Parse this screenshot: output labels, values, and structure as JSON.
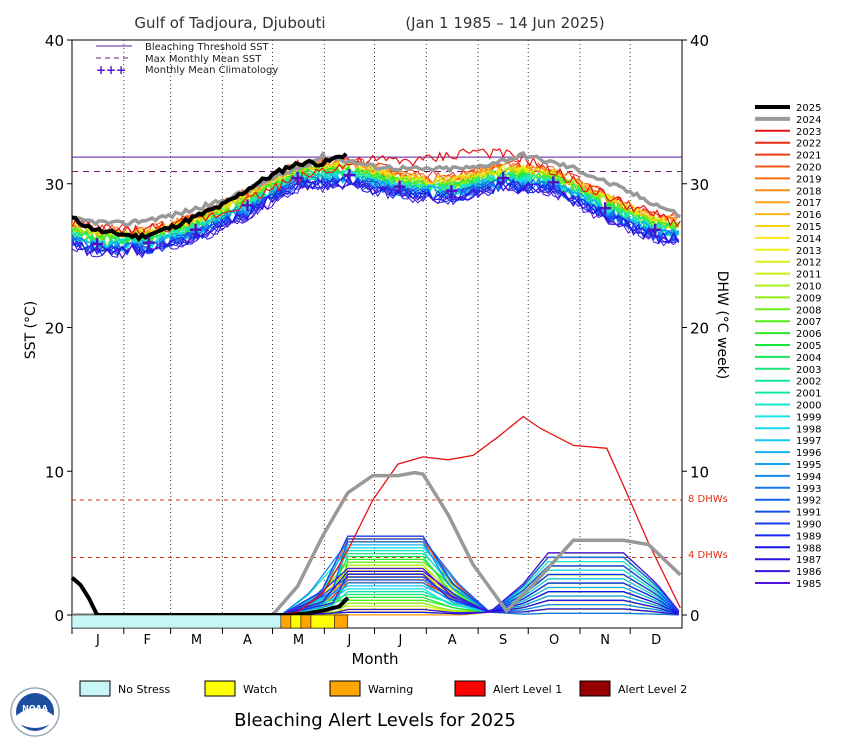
{
  "title": "Gulf of Tadjoura, Djubouti",
  "date_range": "(Jan 1 1985 – 14 Jun 2025)",
  "bottom_title": "Bleaching Alert Levels for 2025",
  "logo_text": "NOAA",
  "legend_top": [
    {
      "label": "Bleaching Threshold SST",
      "color": "#5a1aa0",
      "style": "solid"
    },
    {
      "label": "Max Monthly Mean SST",
      "color": "#7a1a6a",
      "style": "dashed"
    },
    {
      "label": "Monthly Mean Climatology",
      "color": "#5010c8",
      "style": "plus"
    }
  ],
  "dhw_ref_labels": [
    "8 DHWs",
    "4 DHWs"
  ],
  "alert_legend": [
    {
      "label": "No Stress",
      "color": "#c8f6f6"
    },
    {
      "label": "Watch",
      "color": "#ffff00"
    },
    {
      "label": "Warning",
      "color": "#ffa500"
    },
    {
      "label": "Alert Level 1",
      "color": "#ff0000"
    },
    {
      "label": "Alert Level 2",
      "color": "#960000"
    }
  ],
  "year_legend": [
    {
      "year": "2025",
      "color": "#000000"
    },
    {
      "year": "2024",
      "color": "#999999"
    },
    {
      "year": "2023",
      "color": "#e61414"
    },
    {
      "year": "2022",
      "color": "#eb2814"
    },
    {
      "year": "2021",
      "color": "#f03c14"
    },
    {
      "year": "2020",
      "color": "#f55a14"
    },
    {
      "year": "2019",
      "color": "#fa6e14"
    },
    {
      "year": "2018",
      "color": "#fa8c14"
    },
    {
      "year": "2017",
      "color": "#faa014"
    },
    {
      "year": "2016",
      "color": "#fab414"
    },
    {
      "year": "2015",
      "color": "#fad214"
    },
    {
      "year": "2014",
      "color": "#fae614"
    },
    {
      "year": "2013",
      "color": "#f0f014"
    },
    {
      "year": "2012",
      "color": "#dcf014"
    },
    {
      "year": "2011",
      "color": "#c8f014"
    },
    {
      "year": "2010",
      "color": "#aaf014"
    },
    {
      "year": "2009",
      "color": "#8cf014"
    },
    {
      "year": "2008",
      "color": "#6ef014"
    },
    {
      "year": "2007",
      "color": "#50f014"
    },
    {
      "year": "2006",
      "color": "#32e628"
    },
    {
      "year": "2005",
      "color": "#14e63c"
    },
    {
      "year": "2004",
      "color": "#14e65a"
    },
    {
      "year": "2003",
      "color": "#14e678"
    },
    {
      "year": "2002",
      "color": "#14e696"
    },
    {
      "year": "2001",
      "color": "#14e6aa"
    },
    {
      "year": "2000",
      "color": "#14e6c8"
    },
    {
      "year": "1999",
      "color": "#14e6e6"
    },
    {
      "year": "1998",
      "color": "#14dcf0"
    },
    {
      "year": "1997",
      "color": "#14c8f0"
    },
    {
      "year": "1996",
      "color": "#14b4f0"
    },
    {
      "year": "1995",
      "color": "#14a0f0"
    },
    {
      "year": "1994",
      "color": "#148cf0"
    },
    {
      "year": "1993",
      "color": "#1478f0"
    },
    {
      "year": "1992",
      "color": "#1464f0"
    },
    {
      "year": "1991",
      "color": "#1450f0"
    },
    {
      "year": "1990",
      "color": "#143cf0"
    },
    {
      "year": "1989",
      "color": "#1428f0"
    },
    {
      "year": "1988",
      "color": "#1414e6"
    },
    {
      "year": "1987",
      "color": "#2814dc"
    },
    {
      "year": "1986",
      "color": "#3c14dc"
    },
    {
      "year": "1985",
      "color": "#5014dc"
    }
  ],
  "chart_data": {
    "type": "line",
    "title": "Gulf of Tadjoura, Djubouti",
    "xlabel": "Month",
    "ylabel": "SST (°C)",
    "y2label": "DHW (°C week)",
    "x_ticks": [
      "J",
      "F",
      "M",
      "A",
      "M",
      "J",
      "J",
      "A",
      "S",
      "O",
      "N",
      "D"
    ],
    "ylim": [
      0,
      40
    ],
    "y_ticks": [
      0,
      10,
      20,
      30,
      40
    ],
    "y2lim": [
      0,
      40
    ],
    "y2_ticks": [
      0,
      10,
      20,
      30,
      40
    ],
    "bleaching_threshold_sst": 31.85,
    "max_monthly_mean_sst": 30.85,
    "dhw_reference_lines": [
      8,
      4
    ],
    "monthly_mean_climatology": {
      "x": [
        15,
        46,
        74,
        105,
        135,
        166,
        196,
        227,
        258,
        288,
        319,
        349
      ],
      "y": [
        25.8,
        25.9,
        26.8,
        28.5,
        30.4,
        30.6,
        29.8,
        29.5,
        30.4,
        30.1,
        28.3,
        26.8
      ]
    },
    "series": [
      {
        "name": "2025",
        "sst_x": [
          0,
          10,
          20,
          30,
          40,
          50,
          60,
          70,
          80,
          90,
          100,
          110,
          120,
          130,
          140,
          150,
          160,
          165
        ],
        "sst_y": [
          27.6,
          27.0,
          26.6,
          26.5,
          26.3,
          26.6,
          27.0,
          27.5,
          28.0,
          28.5,
          29.2,
          30.0,
          30.6,
          31.2,
          31.5,
          31.4,
          31.9,
          32.1
        ],
        "dhw_x": [
          0,
          5,
          10,
          15,
          20,
          25,
          120,
          130,
          140,
          150,
          160,
          165
        ],
        "dhw_y": [
          2.6,
          2.1,
          1.2,
          0,
          0,
          0,
          0,
          0,
          0.1,
          0.3,
          0.6,
          1.2
        ]
      },
      {
        "name": "2024",
        "sst_x": [
          0,
          30,
          60,
          90,
          120,
          150,
          165,
          180,
          210,
          240,
          270,
          300,
          330,
          364
        ],
        "sst_y": [
          27.5,
          27.2,
          27.8,
          28.8,
          30.3,
          31.9,
          31.6,
          31.2,
          31.0,
          31.1,
          32.0,
          31.1,
          29.6,
          27.8
        ],
        "dhw_x": [
          0,
          60,
          120,
          135,
          150,
          165,
          180,
          195,
          205,
          210,
          225,
          240,
          260,
          275,
          300,
          330,
          345,
          364
        ],
        "dhw_y": [
          0,
          0,
          0,
          2.0,
          5.5,
          8.5,
          9.7,
          9.7,
          9.9,
          9.8,
          7.0,
          3.5,
          0.3,
          2.0,
          5.2,
          5.2,
          4.9,
          2.8
        ]
      },
      {
        "name": "2023",
        "sst_x": [
          0,
          30,
          60,
          90,
          120,
          150,
          180,
          210,
          240,
          270,
          300,
          330,
          364
        ],
        "sst_y": [
          27.3,
          26.7,
          27.0,
          28.0,
          29.7,
          31.0,
          31.6,
          31.6,
          32.3,
          31.8,
          30.2,
          28.6,
          27.2
        ],
        "dhw_x": [
          0,
          120,
          135,
          150,
          165,
          180,
          195,
          210,
          225,
          240,
          255,
          270,
          280,
          300,
          320,
          330,
          345,
          364
        ],
        "dhw_y": [
          0,
          0,
          0.2,
          1.5,
          4.5,
          8.0,
          10.5,
          11.0,
          10.8,
          11.1,
          12.4,
          13.8,
          13.0,
          11.8,
          11.6,
          9.0,
          5.0,
          0.5
        ]
      }
    ]
  }
}
